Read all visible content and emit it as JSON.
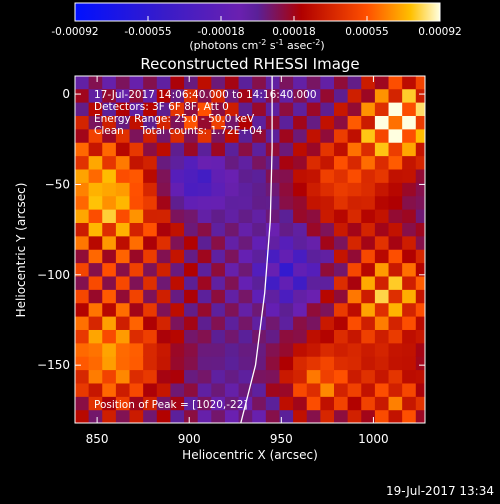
{
  "chart_data": {
    "type": "heatmap",
    "title": "Reconstructed RHESSI Image",
    "xlabel": "Heliocentric X (arcsec)",
    "ylabel": "Heliocentric Y (arcsec)",
    "xlim": [
      838,
      1028
    ],
    "ylim": [
      -182,
      10
    ],
    "xticks": [
      850,
      900,
      950,
      1000
    ],
    "yticks": [
      0,
      -50,
      -100,
      -150
    ],
    "colorbar": {
      "ticks": [
        "-0.00092",
        "-0.00055",
        "-0.00018",
        "0.00018",
        "0.00055",
        "0.00092"
      ],
      "vmin": -0.00092,
      "vmax": 0.00092,
      "units_main": "(photons cm",
      "units_sup1": "-2",
      "units_mid": " s",
      "units_sup2": "-1",
      "units_tail": " asec",
      "units_sup3": "-2",
      "units_close": ")"
    },
    "annotations": [
      "17-Jul-2017 14:06:40.000 to 14:16:40.000",
      "Detectors: 3F 6F 8F, Att 0",
      "Energy Range: 25.0 - 50.0 keV",
      "Clean     Total counts: 1.72E+04"
    ],
    "peak_label": "Position of Peak = [1020,-22]",
    "limb_curve": [
      [
        928,
        -182
      ],
      [
        936,
        -150
      ],
      [
        941,
        -110
      ],
      [
        944,
        -70
      ],
      [
        945,
        -30
      ],
      [
        945,
        10
      ]
    ],
    "hotspots": [
      {
        "x": 1015,
        "y": -15,
        "sigma": 18,
        "amp": 1.0
      },
      {
        "x": 1005,
        "y": -115,
        "sigma": 22,
        "amp": 0.75
      },
      {
        "x": 850,
        "y": -60,
        "sigma": 28,
        "amp": 0.75
      },
      {
        "x": 860,
        "y": -140,
        "sigma": 24,
        "amp": 0.7
      },
      {
        "x": 980,
        "y": -50,
        "sigma": 20,
        "amp": 0.4
      },
      {
        "x": 970,
        "y": -160,
        "sigma": 15,
        "amp": 0.5
      },
      {
        "x": 905,
        "y": -15,
        "sigma": 15,
        "amp": 0.45
      },
      {
        "x": 1015,
        "y": -170,
        "sigma": 15,
        "amp": 0.5
      }
    ],
    "cold_spots": [
      {
        "x": 901,
        "y": -47,
        "sigma": 12,
        "amp": -0.55
      },
      {
        "x": 955,
        "y": -100,
        "sigma": 14,
        "amp": -0.4
      }
    ]
  },
  "timestamp": "19-Jul-2017 13:34"
}
